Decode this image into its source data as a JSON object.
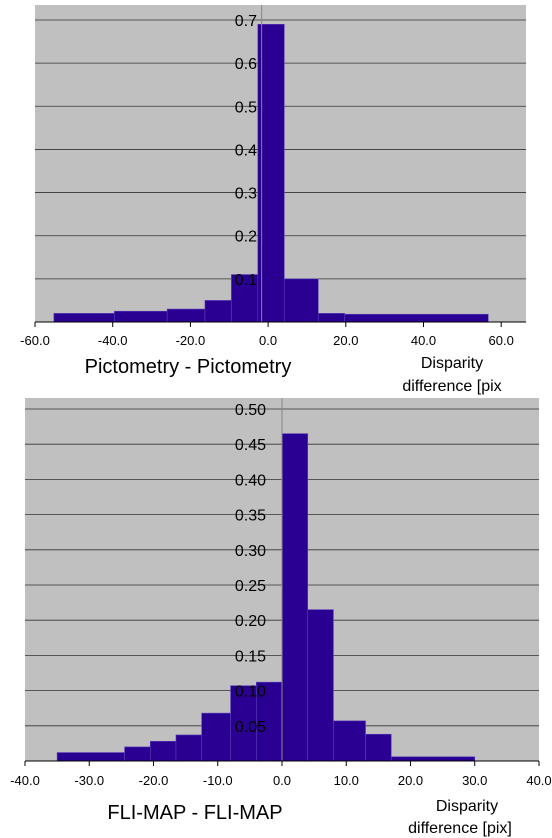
{
  "chart_data": [
    {
      "type": "bar",
      "title": "Pictometry - Pictometry",
      "xlabel": "Disparity difference [pix]",
      "xlabel_lines": [
        "Disparity",
        "difference [pix"
      ],
      "ylabel": "",
      "xlim": [
        -60,
        70
      ],
      "ylim": [
        0,
        0.8
      ],
      "x_tick_labels": [
        "-60.0",
        "-40.0",
        "-20.0",
        "0.0",
        "20.0",
        "40.0",
        "60.0"
      ],
      "y_tick_labels": [
        "0.1",
        "0.2",
        "0.3",
        "0.4",
        "0.5",
        "0.6",
        "0.7"
      ],
      "grid": true,
      "bins": [
        {
          "from": -55,
          "to": -39,
          "value": 0.02
        },
        {
          "from": -39,
          "to": -25,
          "value": 0.025
        },
        {
          "from": -25,
          "to": -15,
          "value": 0.03
        },
        {
          "from": -15,
          "to": -8,
          "value": 0.05
        },
        {
          "from": -8,
          "to": -1,
          "value": 0.11
        },
        {
          "from": -1,
          "to": 6,
          "value": 0.69
        },
        {
          "from": 6,
          "to": 15,
          "value": 0.1
        },
        {
          "from": 15,
          "to": 22,
          "value": 0.02
        },
        {
          "from": 22,
          "to": 60,
          "value": 0.018
        }
      ],
      "bar_color": "#2a0092",
      "background": "#c0c0c0"
    },
    {
      "type": "bar",
      "title": "FLI-MAP - FLI-MAP",
      "xlabel": "Disparity difference [pix]",
      "xlabel_lines": [
        "Disparity",
        "difference [pix]"
      ],
      "ylabel": "",
      "xlim": [
        -40,
        40
      ],
      "ylim": [
        0,
        0.5
      ],
      "x_tick_labels": [
        "-40.0",
        "-30.0",
        "-20.0",
        "-10.0",
        "0.0",
        "10.0",
        "20.0",
        "30.0",
        "40.0"
      ],
      "y_tick_labels": [
        "0.05",
        "0.10",
        "0.15",
        "0.20",
        "0.25",
        "0.30",
        "0.35",
        "0.40",
        "0.45",
        "0.50"
      ],
      "grid": true,
      "bins": [
        {
          "from": -35,
          "to": -24.5,
          "value": 0.012
        },
        {
          "from": -24.5,
          "to": -20.5,
          "value": 0.02
        },
        {
          "from": -20.5,
          "to": -16.5,
          "value": 0.028
        },
        {
          "from": -16.5,
          "to": -12.5,
          "value": 0.037
        },
        {
          "from": -12.5,
          "to": -8,
          "value": 0.068
        },
        {
          "from": -8,
          "to": -4,
          "value": 0.107
        },
        {
          "from": -4,
          "to": 0,
          "value": 0.112
        },
        {
          "from": 0,
          "to": 4,
          "value": 0.465
        },
        {
          "from": 4,
          "to": 8,
          "value": 0.215
        },
        {
          "from": 8,
          "to": 13,
          "value": 0.057
        },
        {
          "from": 13,
          "to": 17,
          "value": 0.038
        },
        {
          "from": 17,
          "to": 30,
          "value": 0.006
        }
      ],
      "bar_color": "#2a0092",
      "background": "#c0c0c0"
    }
  ]
}
